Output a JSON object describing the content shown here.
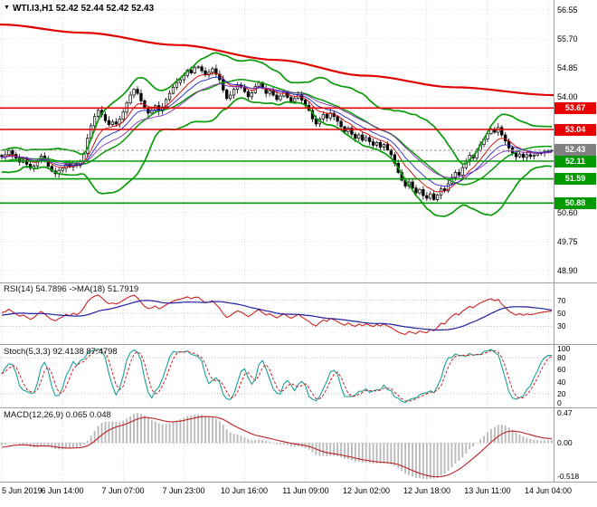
{
  "header": {
    "title": "WTI.I3,H1 52.42 52.44 52.42 52.43"
  },
  "main_chart": {
    "scale_top": 56.84,
    "scale_bottom": 48.55,
    "grid_prices": [
      56.55,
      55.7,
      54.85,
      54.0,
      53.15,
      52.3,
      51.45,
      50.6,
      49.75,
      48.9
    ],
    "price_axis_labels": [
      [
        56.55,
        "56.55"
      ],
      [
        55.7,
        "55.70"
      ],
      [
        54.85,
        "54.85"
      ],
      [
        54.0,
        "54.00"
      ],
      [
        50.6,
        "50.60"
      ],
      [
        49.75,
        "49.75"
      ],
      [
        48.9,
        "48.90"
      ]
    ],
    "levels": [
      {
        "price": 53.67,
        "label": "53.67",
        "type": "resistance",
        "color": "#e80000"
      },
      {
        "price": 53.04,
        "label": "53.04",
        "type": "resistance",
        "color": "#e80000"
      },
      {
        "price": 52.11,
        "label": "52.11",
        "type": "support",
        "color": "#009a00"
      },
      {
        "price": 51.59,
        "label": "51.59",
        "type": "support",
        "color": "#009a00"
      },
      {
        "price": 50.88,
        "label": "50.88",
        "type": "support",
        "color": "#009a00"
      }
    ],
    "current_price": {
      "value": 52.43,
      "label": "52.43",
      "badge_color": "#808080"
    }
  },
  "chart_data": {
    "type": "bar",
    "subtype": "candlestick",
    "symbol": "WTI",
    "timeframe": "H1",
    "title": "WTI.I3,H1",
    "current_bar": {
      "open": 52.42,
      "high": 52.44,
      "low": 52.42,
      "close": 52.43
    },
    "visible_start": 33,
    "bars_per_time_label": 17,
    "closes": [
      52.4,
      52.55,
      52.7,
      52.88,
      53.05,
      52.95,
      53.1,
      52.92,
      52.75,
      52.6,
      52.72,
      52.5,
      52.35,
      52.45,
      52.25,
      52.1,
      51.95,
      52.05,
      51.85,
      51.75,
      51.9,
      52.05,
      52.2,
      52.1,
      51.95,
      52.08,
      52.22,
      52.35,
      52.28,
      52.15,
      52.3,
      52.2,
      52.28,
      52.24,
      52.3,
      52.42,
      52.31,
      52.2,
      52.08,
      52.14,
      52.02,
      51.9,
      51.97,
      52.12,
      52.26,
      52.14,
      51.96,
      51.82,
      51.74,
      51.84,
      51.9,
      52.02,
      51.94,
      52.06,
      51.98,
      52.1,
      52.34,
      52.78,
      53.15,
      53.42,
      53.6,
      53.48,
      53.3,
      53.18,
      53.26,
      53.2,
      53.34,
      53.55,
      53.82,
      54.05,
      54.22,
      54.1,
      53.88,
      53.66,
      53.52,
      53.6,
      53.74,
      53.58,
      53.7,
      53.92,
      54.1,
      54.28,
      54.42,
      54.5,
      54.62,
      54.78,
      54.7,
      54.85,
      54.88,
      54.76,
      54.64,
      54.72,
      54.82,
      54.66,
      54.5,
      54.2,
      53.95,
      54.05,
      54.22,
      54.35,
      54.28,
      54.15,
      54.0,
      54.12,
      54.3,
      54.42,
      54.25,
      54.1,
      54.18,
      54.05,
      53.92,
      54.02,
      54.14,
      53.98,
      53.86,
      53.95,
      54.06,
      53.9,
      53.75,
      53.6,
      53.35,
      53.2,
      53.35,
      53.48,
      53.38,
      53.52,
      53.42,
      53.28,
      53.12,
      52.98,
      53.08,
      52.9,
      52.78,
      52.88,
      52.72,
      52.8,
      52.68,
      52.58,
      52.66,
      52.52,
      52.6,
      52.44,
      52.3,
      52.05,
      51.78,
      51.55,
      51.38,
      51.5,
      51.32,
      51.18,
      51.28,
      51.1,
      51.02,
      51.15,
      50.98,
      51.12,
      51.3,
      51.24,
      51.45,
      51.62,
      51.78,
      51.7,
      51.92,
      52.1,
      52.28,
      52.2,
      52.42,
      52.6,
      52.76,
      52.92,
      53.05,
      52.96,
      53.1,
      52.88,
      52.7,
      52.5,
      52.35,
      52.24,
      52.32,
      52.22,
      52.3,
      52.25,
      52.28,
      52.33,
      52.36,
      52.4,
      52.42,
      52.43
    ],
    "overlays": {
      "bollinger": {
        "period": 20,
        "deviation": 2,
        "color": "#0a9a0a"
      },
      "ma_fast": [
        {
          "period": 8,
          "color": "#d40000"
        },
        {
          "period": 13,
          "color": "#2222cc"
        },
        {
          "period": 21,
          "color": "#8833bb"
        }
      ],
      "trend_ma": {
        "color": "#e00000",
        "points": [
          [
            0,
            56.12
          ],
          [
            0.15,
            55.88
          ],
          [
            0.32,
            55.52
          ],
          [
            0.5,
            55.08
          ],
          [
            0.66,
            54.62
          ],
          [
            0.82,
            54.28
          ],
          [
            1,
            54.05
          ]
        ]
      }
    }
  },
  "rsi": {
    "label": "RSI(14) 54.7896 ->MA(18) 51.7919",
    "period": 14,
    "ma_period": 18,
    "axis_labels": [
      [
        70,
        "70"
      ],
      [
        50,
        "50"
      ],
      [
        30,
        "30"
      ]
    ],
    "line_color": "#cc2222",
    "ma_color": "#2020a0"
  },
  "stoch": {
    "label": "Stoch(5,3,3) 92.4138 87.4798",
    "k": 5,
    "d": 3,
    "slowing": 3,
    "levels": [
      80,
      20
    ],
    "axis_labels": [
      [
        100,
        "100"
      ],
      [
        80,
        "80"
      ],
      [
        60,
        "60"
      ],
      [
        40,
        "40"
      ],
      [
        20,
        "20"
      ],
      [
        0,
        "0"
      ]
    ],
    "k_color": "#18a098",
    "d_color": "#cc2222"
  },
  "macd": {
    "label": "MACD(12,26,9) 0.065 0.048",
    "fast": 12,
    "slow": 26,
    "signal": 9,
    "scale_top": 0.55,
    "scale_bottom": -0.6,
    "axis_labels": [
      [
        0.47,
        "0.47"
      ],
      [
        0,
        "0.00"
      ],
      [
        -0.518,
        "-0.518"
      ]
    ],
    "hist_color": "#b8b8b8",
    "signal_color": "#bb2222"
  },
  "time_axis": {
    "labels": [
      "5 Jun 2019",
      "6 Jun 14:00",
      "7 Jun 07:00",
      "7 Jun 23:00",
      "10 Jun 16:00",
      "11 Jun 09:00",
      "12 Jun 02:00",
      "12 Jun 18:00",
      "13 Jun 11:00",
      "14 Jun 04:00"
    ]
  },
  "colors": {
    "background": "#ffffff",
    "grid": "#d6d6d6",
    "separator": "#a0a0a0",
    "candle_up_fill": "#ffffff",
    "candle_down_fill": "#000000",
    "candle_border": "#000000"
  }
}
